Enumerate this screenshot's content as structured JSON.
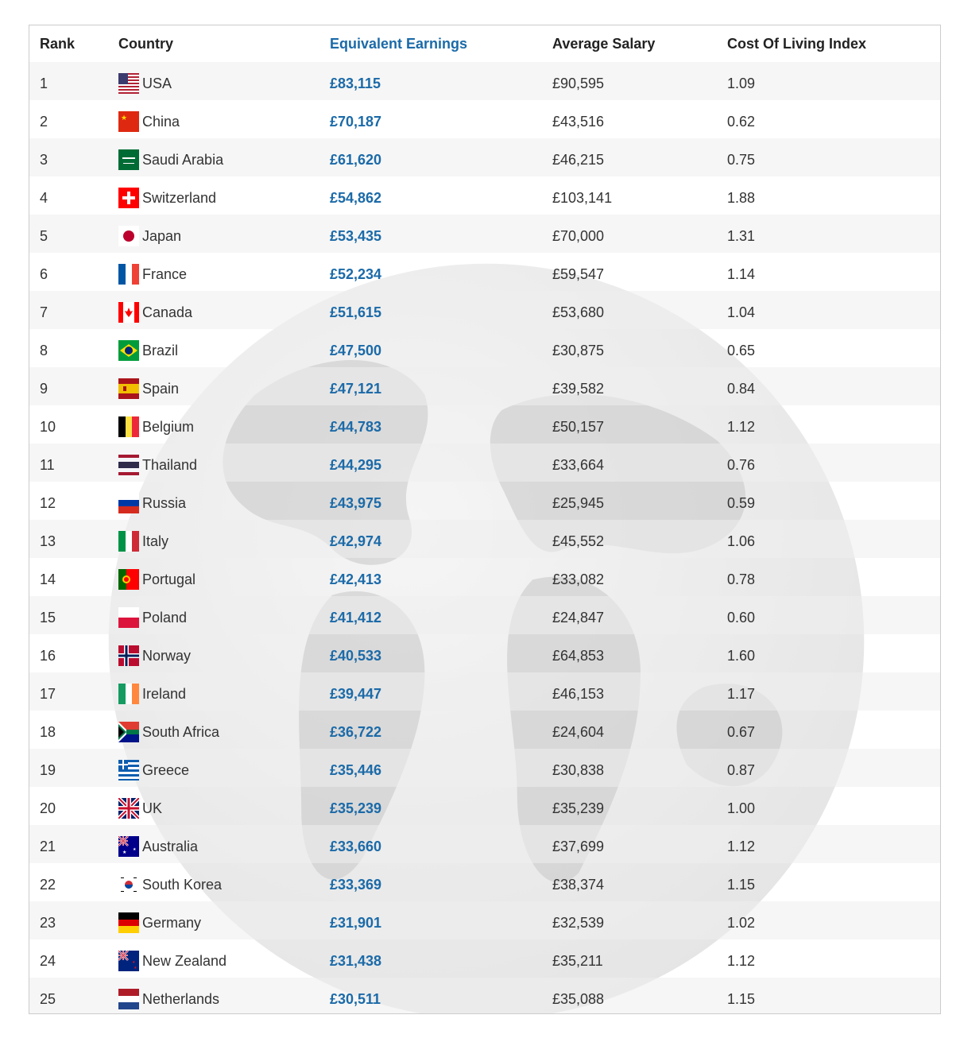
{
  "table": {
    "headers": {
      "rank": "Rank",
      "country": "Country",
      "earnings": "Equivalent Earnings",
      "salary": "Average Salary",
      "cost_index": "Cost Of Living Index"
    },
    "accent_color": "#1b6aa8",
    "rows": [
      {
        "rank": "1",
        "country": "USA",
        "flag": "usa-flag-icon",
        "earnings": "£83,115",
        "salary": "£90,595",
        "cost_index": "1.09"
      },
      {
        "rank": "2",
        "country": "China",
        "flag": "china-flag-icon",
        "earnings": "£70,187",
        "salary": "£43,516",
        "cost_index": "0.62"
      },
      {
        "rank": "3",
        "country": "Saudi Arabia",
        "flag": "saudi-arabia-flag-icon",
        "earnings": "£61,620",
        "salary": "£46,215",
        "cost_index": "0.75"
      },
      {
        "rank": "4",
        "country": "Switzerland",
        "flag": "switzerland-flag-icon",
        "earnings": "£54,862",
        "salary": "£103,141",
        "cost_index": "1.88"
      },
      {
        "rank": "5",
        "country": "Japan",
        "flag": "japan-flag-icon",
        "earnings": "£53,435",
        "salary": "£70,000",
        "cost_index": "1.31"
      },
      {
        "rank": "6",
        "country": "France",
        "flag": "france-flag-icon",
        "earnings": "£52,234",
        "salary": "£59,547",
        "cost_index": "1.14"
      },
      {
        "rank": "7",
        "country": "Canada",
        "flag": "canada-flag-icon",
        "earnings": "£51,615",
        "salary": "£53,680",
        "cost_index": "1.04"
      },
      {
        "rank": "8",
        "country": "Brazil",
        "flag": "brazil-flag-icon",
        "earnings": "£47,500",
        "salary": "£30,875",
        "cost_index": "0.65"
      },
      {
        "rank": "9",
        "country": "Spain",
        "flag": "spain-flag-icon",
        "earnings": "£47,121",
        "salary": "£39,582",
        "cost_index": "0.84"
      },
      {
        "rank": "10",
        "country": "Belgium",
        "flag": "belgium-flag-icon",
        "earnings": "£44,783",
        "salary": "£50,157",
        "cost_index": "1.12"
      },
      {
        "rank": "11",
        "country": "Thailand",
        "flag": "thailand-flag-icon",
        "earnings": "£44,295",
        "salary": "£33,664",
        "cost_index": "0.76"
      },
      {
        "rank": "12",
        "country": "Russia",
        "flag": "russia-flag-icon",
        "earnings": "£43,975",
        "salary": "£25,945",
        "cost_index": "0.59"
      },
      {
        "rank": "13",
        "country": "Italy",
        "flag": "italy-flag-icon",
        "earnings": "£42,974",
        "salary": "£45,552",
        "cost_index": "1.06"
      },
      {
        "rank": "14",
        "country": "Portugal",
        "flag": "portugal-flag-icon",
        "earnings": "£42,413",
        "salary": "£33,082",
        "cost_index": "0.78"
      },
      {
        "rank": "15",
        "country": "Poland",
        "flag": "poland-flag-icon",
        "earnings": "£41,412",
        "salary": "£24,847",
        "cost_index": "0.60"
      },
      {
        "rank": "16",
        "country": "Norway",
        "flag": "norway-flag-icon",
        "earnings": "£40,533",
        "salary": "£64,853",
        "cost_index": "1.60"
      },
      {
        "rank": "17",
        "country": "Ireland",
        "flag": "ireland-flag-icon",
        "earnings": "£39,447",
        "salary": "£46,153",
        "cost_index": "1.17"
      },
      {
        "rank": "18",
        "country": "South Africa",
        "flag": "south-africa-flag-icon",
        "earnings": "£36,722",
        "salary": "£24,604",
        "cost_index": "0.67"
      },
      {
        "rank": "19",
        "country": "Greece",
        "flag": "greece-flag-icon",
        "earnings": "£35,446",
        "salary": "£30,838",
        "cost_index": "0.87"
      },
      {
        "rank": "20",
        "country": "UK",
        "flag": "uk-flag-icon",
        "earnings": "£35,239",
        "salary": "£35,239",
        "cost_index": "1.00"
      },
      {
        "rank": "21",
        "country": "Australia",
        "flag": "australia-flag-icon",
        "earnings": "£33,660",
        "salary": "£37,699",
        "cost_index": "1.12"
      },
      {
        "rank": "22",
        "country": "South Korea",
        "flag": "south-korea-flag-icon",
        "earnings": "£33,369",
        "salary": "£38,374",
        "cost_index": "1.15"
      },
      {
        "rank": "23",
        "country": "Germany",
        "flag": "germany-flag-icon",
        "earnings": "£31,901",
        "salary": "£32,539",
        "cost_index": "1.02"
      },
      {
        "rank": "24",
        "country": "New Zealand",
        "flag": "new-zealand-flag-icon",
        "earnings": "£31,438",
        "salary": "£35,211",
        "cost_index": "1.12"
      },
      {
        "rank": "25",
        "country": "Netherlands",
        "flag": "netherlands-flag-icon",
        "earnings": "£30,511",
        "salary": "£35,088",
        "cost_index": "1.15"
      }
    ]
  }
}
